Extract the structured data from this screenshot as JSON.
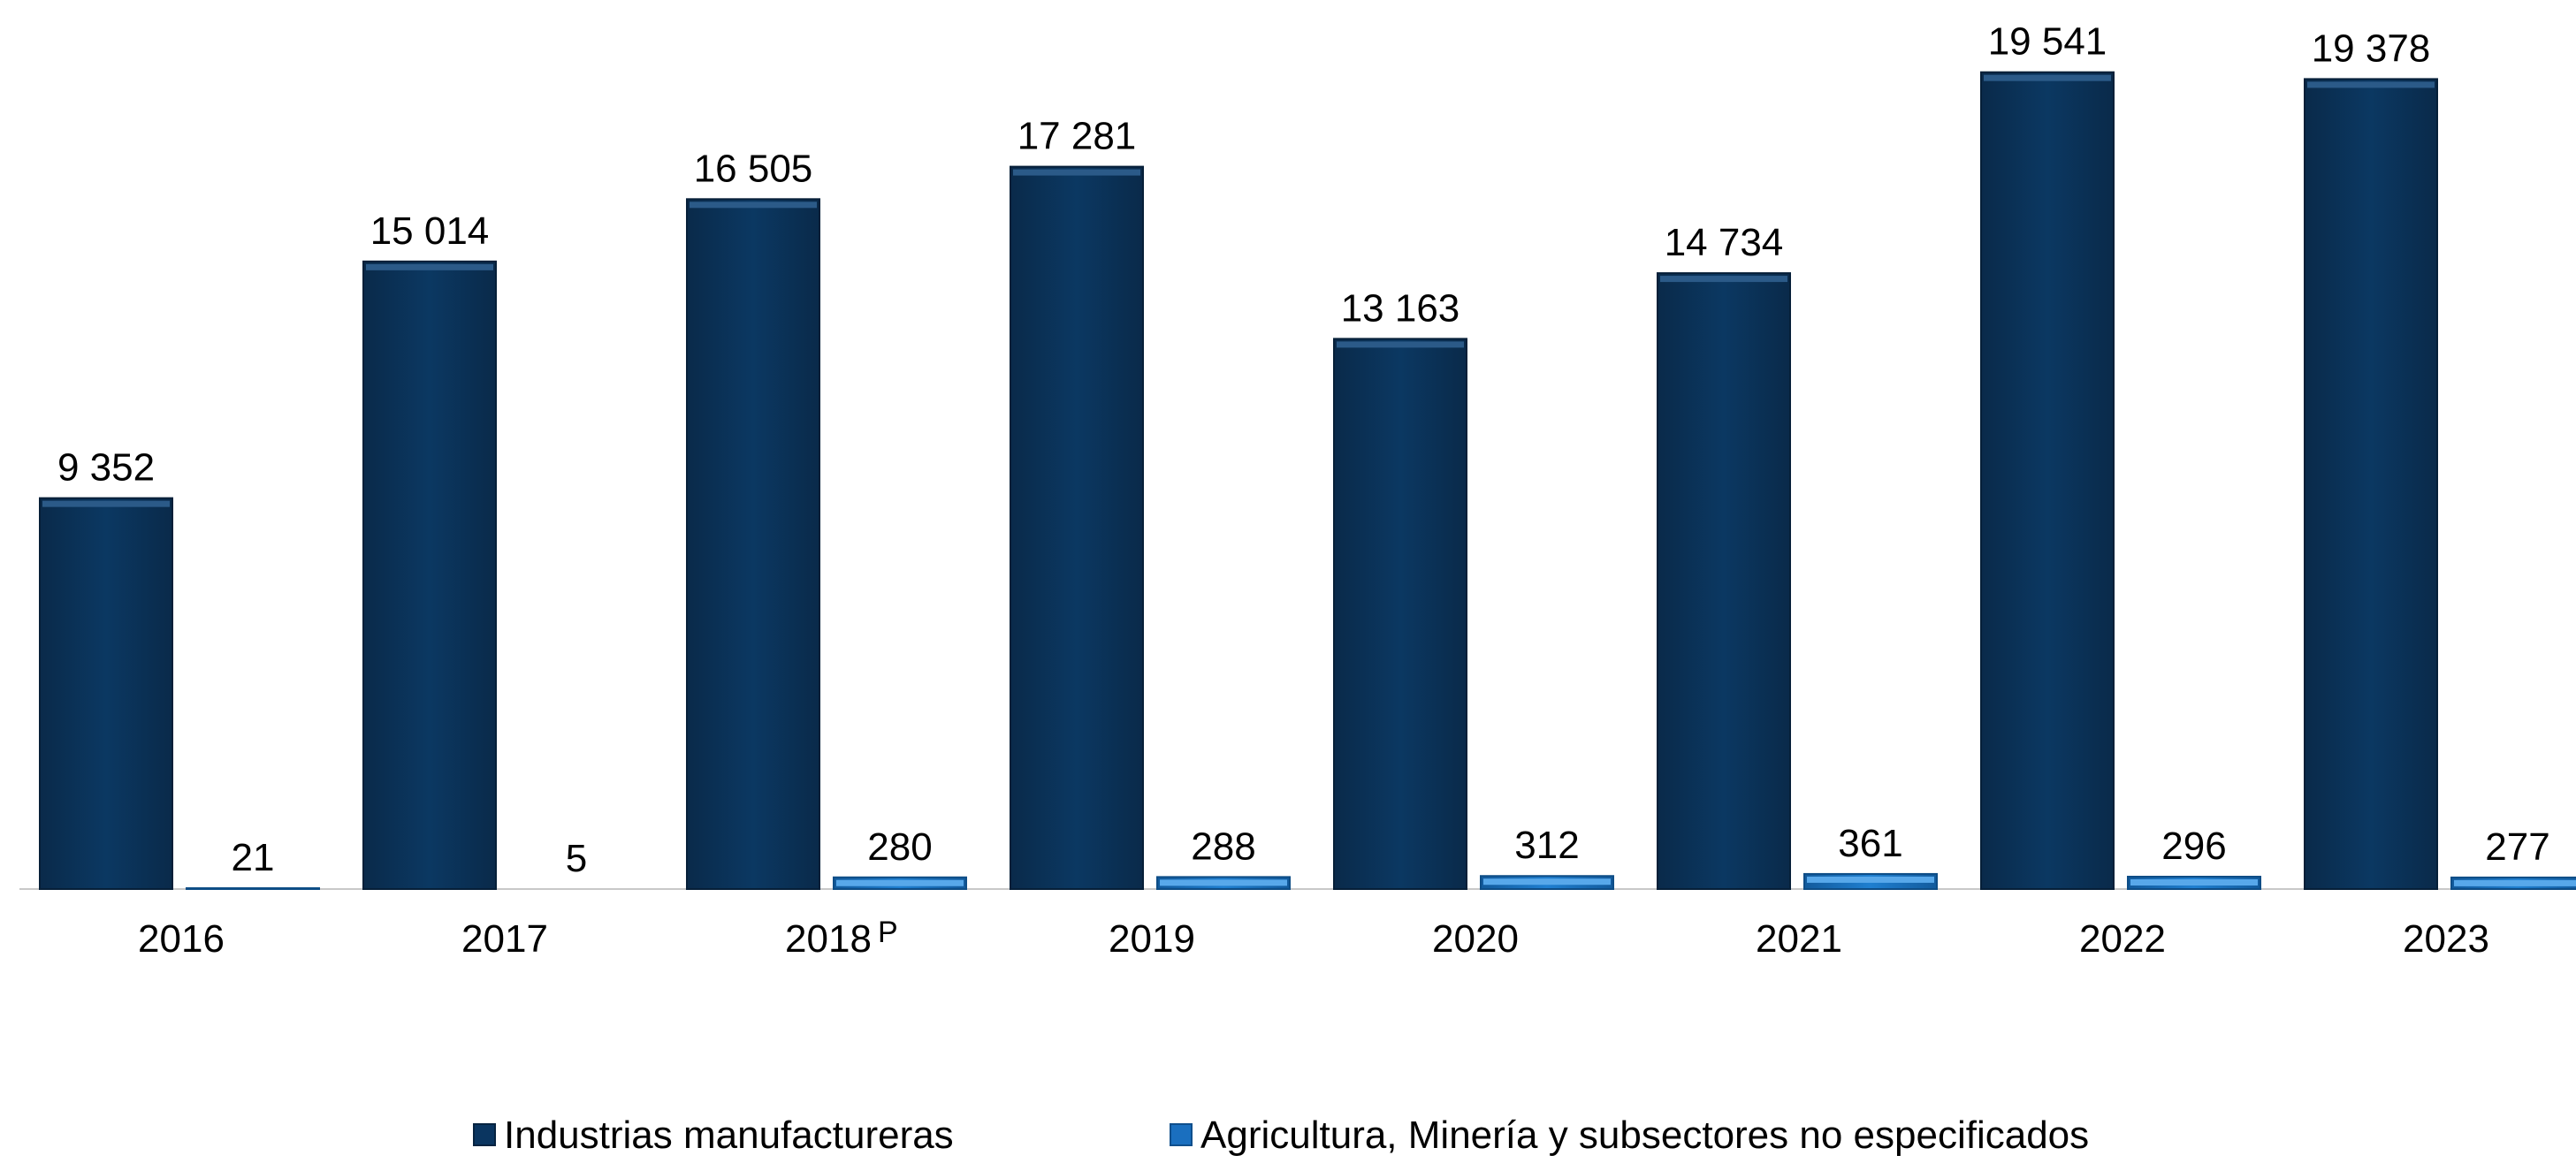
{
  "chart_data": {
    "type": "bar",
    "title": "",
    "xlabel": "",
    "ylabel": "",
    "categories": [
      "2016",
      "2017",
      "2018",
      "2019",
      "2020",
      "2021",
      "2022",
      "2023"
    ],
    "category_superscripts": [
      "",
      "",
      "P",
      "",
      "",
      "",
      "",
      ""
    ],
    "series": [
      {
        "name": "Industrias manufactureras",
        "values": [
          9352,
          15014,
          16505,
          17281,
          13163,
          14734,
          19541,
          19378
        ],
        "labels": [
          "9 352",
          "15 014",
          "16 505",
          "17 281",
          "13 163",
          "14 734",
          "19 541",
          "19 378"
        ],
        "color": "#0a3560"
      },
      {
        "name": "Agricultura, Minería y subsectores no especificados",
        "values": [
          21,
          5,
          280,
          288,
          312,
          361,
          296,
          277
        ],
        "labels": [
          "21",
          "5",
          "280",
          "288",
          "312",
          "361",
          "296",
          "277"
        ],
        "color": "#1a6fbf"
      }
    ],
    "ylim": [
      0,
      20000
    ],
    "grid": false,
    "legend_position": "bottom"
  }
}
